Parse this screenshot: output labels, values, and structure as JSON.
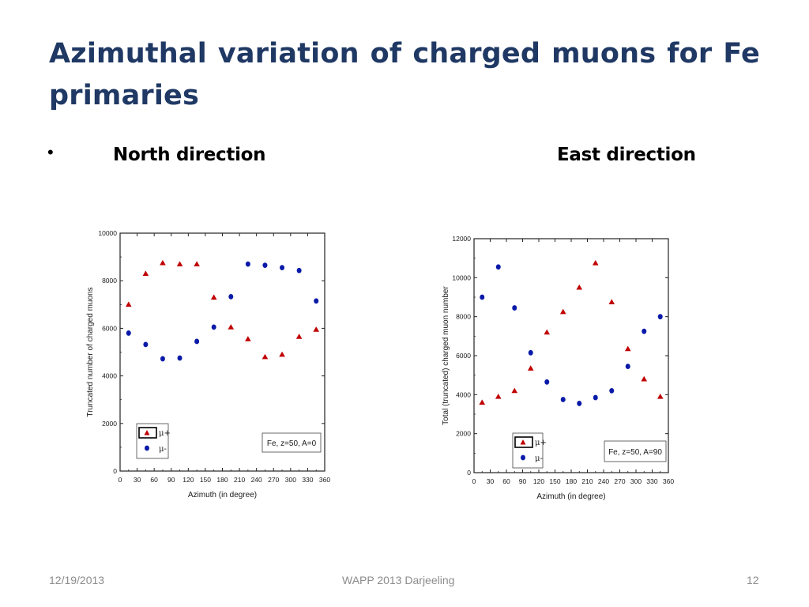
{
  "slide": {
    "title": "Azimuthal variation of charged muons for Fe primaries",
    "bullet": "•",
    "heading_north": "North direction",
    "heading_east": "East direction"
  },
  "footer": {
    "date": "12/19/2013",
    "conference": "WAPP 2013  Darjeeling",
    "page": "12"
  },
  "colors": {
    "title": "#1f3864",
    "mu_plus": "#c00000",
    "mu_minus": "#0a1aa8"
  },
  "chart_data": [
    {
      "type": "scatter",
      "panel": "north",
      "xlabel": "Azimuth (in degree)",
      "ylabel": "Truncated number of charged muons",
      "xlim": [
        0,
        360
      ],
      "ylim": [
        0,
        10000
      ],
      "xticks": [
        0,
        30,
        60,
        90,
        120,
        150,
        180,
        210,
        240,
        270,
        300,
        330,
        360
      ],
      "yticks": [
        0,
        2000,
        4000,
        6000,
        8000,
        10000
      ],
      "legend": [
        "μ+",
        "μ-"
      ],
      "annotation": "Fe, z=50, A=0",
      "series": [
        {
          "name": "μ+",
          "marker": "triangle",
          "x": [
            15,
            45,
            75,
            105,
            135,
            165,
            195,
            225,
            255,
            285,
            315,
            345
          ],
          "y": [
            7000,
            8300,
            8750,
            8700,
            8700,
            7300,
            6050,
            5550,
            4800,
            4900,
            5650,
            5950
          ]
        },
        {
          "name": "μ-",
          "marker": "circle",
          "x": [
            15,
            45,
            75,
            105,
            135,
            165,
            195,
            225,
            255,
            285,
            315,
            345
          ],
          "y": [
            5800,
            5320,
            4720,
            4750,
            5450,
            6050,
            7330,
            8700,
            8650,
            8550,
            8430,
            7150
          ]
        }
      ]
    },
    {
      "type": "scatter",
      "panel": "east",
      "xlabel": "Azimuth (in degree)",
      "ylabel": "Total (truncated) charged muon number",
      "xlim": [
        0,
        360
      ],
      "ylim": [
        0,
        12000
      ],
      "xticks": [
        0,
        30,
        60,
        90,
        120,
        150,
        180,
        210,
        240,
        270,
        300,
        330,
        360
      ],
      "yticks": [
        0,
        2000,
        4000,
        6000,
        8000,
        10000,
        12000
      ],
      "legend": [
        "μ+",
        "μ-"
      ],
      "annotation": "Fe, z=50, A=90",
      "series": [
        {
          "name": "μ+",
          "marker": "triangle",
          "x": [
            15,
            45,
            75,
            105,
            135,
            165,
            195,
            225,
            255,
            285,
            315,
            345
          ],
          "y": [
            3600,
            3900,
            4200,
            5350,
            7200,
            8250,
            9500,
            10750,
            8750,
            6350,
            4800,
            3900
          ]
        },
        {
          "name": "μ-",
          "marker": "circle",
          "x": [
            15,
            45,
            75,
            105,
            135,
            165,
            195,
            225,
            255,
            285,
            315,
            345
          ],
          "y": [
            9000,
            10550,
            8450,
            6150,
            4650,
            3750,
            3550,
            3850,
            4200,
            5450,
            7250,
            8000
          ]
        }
      ]
    }
  ]
}
